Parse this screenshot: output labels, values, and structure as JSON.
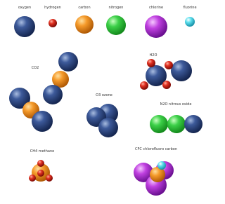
{
  "elements": [
    "oxygen",
    "hydrogen",
    "carbon",
    "nitrogen",
    "chlorine",
    "fluorine"
  ],
  "molecules": [
    {
      "label": "CO2"
    },
    {
      "label": "O3 ozone"
    },
    {
      "label": "H2O"
    },
    {
      "label": "N2O nitrous oxide"
    },
    {
      "label": "CH4 methane"
    },
    {
      "label": "CFC chlorofluoro carbon"
    }
  ]
}
